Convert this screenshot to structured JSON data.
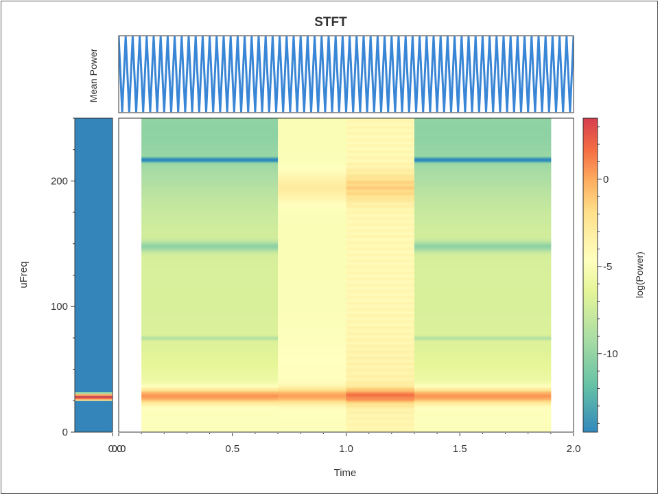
{
  "chart_data": {
    "type": "heatmap",
    "title": "STFT",
    "xlabel": "Time",
    "ylabel": "uFreq",
    "top_panel_label": "Mean Power",
    "colorbar_label": "log(Power)",
    "xlim": [
      0.0,
      2.0
    ],
    "ylim": [
      0,
      250
    ],
    "x_ticks": [
      "0.0",
      "0.5",
      "1.0",
      "1.5",
      "2.0"
    ],
    "x_tick_values": [
      0.0,
      0.5,
      1.0,
      1.5,
      2.0
    ],
    "y_ticks": [
      "0",
      "100",
      "200"
    ],
    "y_tick_values": [
      0,
      100,
      200
    ],
    "colorbar_ticks": [
      "0",
      "-5",
      "-10"
    ],
    "colorbar_tick_values": [
      0,
      -5,
      -10
    ],
    "colorbar_range": [
      -14.5,
      3.5
    ],
    "left_panel_x_tick": "0.0",
    "colormap": "Spectral",
    "spectrogram_time_range": [
      0.1,
      1.9
    ],
    "time_segments": [
      {
        "t": [
          0.1,
          0.7
        ],
        "band_hz": [
          217,
          148,
          75
        ]
      },
      {
        "t": [
          0.7,
          1.0
        ],
        "band_hz": [
          195
        ]
      },
      {
        "t": [
          1.0,
          1.3
        ],
        "band_hz": [
          195
        ]
      },
      {
        "t": [
          1.3,
          1.9
        ],
        "band_hz": [
          217,
          148,
          75
        ]
      }
    ],
    "dominant_frequency": 29,
    "mean_power_oscillation_cycles": 65
  },
  "colors": {
    "frame": "#555555",
    "blue_line": "#3a86d6",
    "left_panel": "#3485b9"
  }
}
